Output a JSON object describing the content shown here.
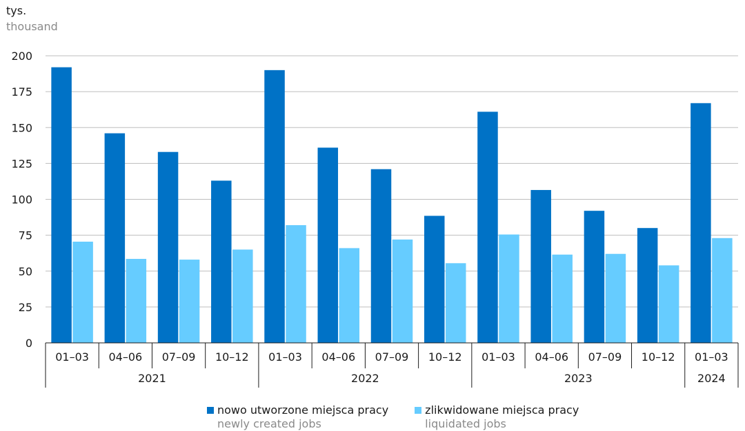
{
  "chart_data": {
    "type": "bar",
    "unit_label": "tys.",
    "unit_label_en": "thousand",
    "categories": [
      "01–03",
      "04–06",
      "07–09",
      "10–12",
      "01–03",
      "04–06",
      "07–09",
      "10–12",
      "01–03",
      "04–06",
      "07–09",
      "10–12",
      "01–03"
    ],
    "groups": [
      {
        "label": "2021",
        "count": 4
      },
      {
        "label": "2022",
        "count": 4
      },
      {
        "label": "2023",
        "count": 4
      },
      {
        "label": "2024",
        "count": 1
      }
    ],
    "series": [
      {
        "name": "nowo utworzone miejsca pracy",
        "name_en": "newly created jobs",
        "color": "#0072c6",
        "values": [
          192,
          146,
          133,
          113,
          190,
          136,
          121,
          88.5,
          161,
          106.5,
          92,
          80,
          167
        ]
      },
      {
        "name": "zlikwidowane miejsca pracy",
        "name_en": "liquidated jobs",
        "color": "#66ccff",
        "values": [
          70.5,
          58.5,
          58,
          65,
          82,
          66,
          72,
          55.5,
          75.5,
          61.5,
          62,
          54,
          73
        ]
      }
    ],
    "yticks": [
      0,
      25,
      50,
      75,
      100,
      125,
      150,
      175,
      200
    ],
    "ylim": [
      0,
      200
    ],
    "grid": true,
    "legend_position": "bottom"
  }
}
